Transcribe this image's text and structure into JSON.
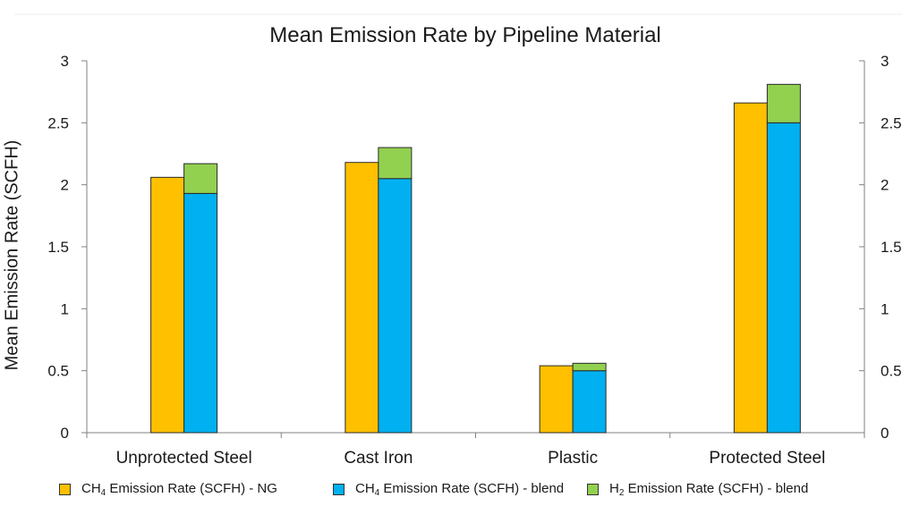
{
  "chart_data": {
    "type": "bar",
    "title": "Mean Emission Rate by Pipeline Material",
    "ylabel": "Mean Emission Rate (SCFH)",
    "xlabel": "",
    "categories": [
      "Unprotected Steel",
      "Cast Iron",
      "Plastic",
      "Protected Steel"
    ],
    "ylim": [
      0,
      3
    ],
    "yticks": [
      "0",
      "0.5",
      "1",
      "1.5",
      "2",
      "2.5",
      "3"
    ],
    "right_axis_ticks": [
      "0",
      "0.5",
      "1",
      "1.5",
      "2",
      "2.5",
      "3"
    ],
    "grid": false,
    "legend_position": "bottom",
    "layout": "NG bar beside stacked blend bar (CH4 blend + H2 blend on top)",
    "series": [
      {
        "key": "ch4_ng",
        "name": "CH4 Emission Rate (SCFH) - NG",
        "legend_main": "CH",
        "legend_sub": "4",
        "legend_rest": " Emission Rate (SCFH) - NG",
        "color": "#FFC000",
        "values": [
          2.06,
          2.18,
          0.54,
          2.66
        ]
      },
      {
        "key": "ch4_blend",
        "name": "CH4 Emission Rate (SCFH) - blend",
        "legend_main": "CH",
        "legend_sub": "4",
        "legend_rest": " Emission Rate (SCFH) - blend",
        "color": "#00B0F0",
        "values": [
          1.93,
          2.05,
          0.5,
          2.5
        ]
      },
      {
        "key": "h2_blend",
        "name": "H2 Emission Rate (SCFH) - blend",
        "legend_main": "H",
        "legend_sub": "2",
        "legend_rest": " Emission Rate (SCFH) - blend",
        "color": "#92D050",
        "values": [
          0.24,
          0.25,
          0.06,
          0.31
        ]
      }
    ]
  }
}
